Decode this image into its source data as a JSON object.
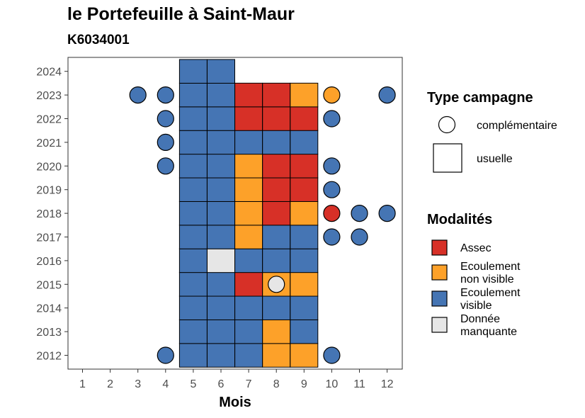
{
  "title": "le Portefeuille à Saint-Maur",
  "subtitle": "K6034001",
  "colors": {
    "Assec": "#D73027",
    "Ecoulement non visible": "#FDA129",
    "Ecoulement visible": "#4575B4",
    "Donnée manquante": "#E6E6E6"
  },
  "legend_type": {
    "title": "Type campagne",
    "items": [
      {
        "key": "complementaire",
        "label": "complémentaire",
        "shape": "circle"
      },
      {
        "key": "usuelle",
        "label": "usuelle",
        "shape": "square"
      }
    ]
  },
  "legend_modalites": {
    "title": "Modalités",
    "items": [
      {
        "key": "Assec",
        "lines": [
          "Assec"
        ]
      },
      {
        "key": "Ecoulement non visible",
        "lines": [
          "Ecoulement",
          "non visible"
        ]
      },
      {
        "key": "Ecoulement visible",
        "lines": [
          "Ecoulement",
          "visible"
        ]
      },
      {
        "key": "Donnée manquante",
        "lines": [
          "Donnée",
          "manquante"
        ]
      }
    ]
  },
  "chart_data": {
    "type": "heatmap",
    "xlabel": "Mois",
    "ylabel": "",
    "x_categories": [
      1,
      2,
      3,
      4,
      5,
      6,
      7,
      8,
      9,
      10,
      11,
      12
    ],
    "y_categories": [
      2012,
      2013,
      2014,
      2015,
      2016,
      2017,
      2018,
      2019,
      2020,
      2021,
      2022,
      2023,
      2024
    ],
    "usuelle": [
      {
        "year": 2012,
        "values": {
          "5": "Ecoulement visible",
          "6": "Ecoulement visible",
          "7": "Ecoulement visible",
          "8": "Ecoulement non visible",
          "9": "Ecoulement non visible"
        }
      },
      {
        "year": 2013,
        "values": {
          "5": "Ecoulement visible",
          "6": "Ecoulement visible",
          "7": "Ecoulement visible",
          "8": "Ecoulement non visible",
          "9": "Ecoulement visible"
        }
      },
      {
        "year": 2014,
        "values": {
          "5": "Ecoulement visible",
          "6": "Ecoulement visible",
          "7": "Ecoulement visible",
          "8": "Ecoulement visible",
          "9": "Ecoulement visible"
        }
      },
      {
        "year": 2015,
        "values": {
          "5": "Ecoulement visible",
          "6": "Ecoulement visible",
          "7": "Assec",
          "8": "Ecoulement non visible",
          "9": "Ecoulement non visible"
        }
      },
      {
        "year": 2016,
        "values": {
          "5": "Ecoulement visible",
          "6": "Donnée manquante",
          "7": "Ecoulement visible",
          "8": "Ecoulement visible",
          "9": "Ecoulement visible"
        }
      },
      {
        "year": 2017,
        "values": {
          "5": "Ecoulement visible",
          "6": "Ecoulement visible",
          "7": "Ecoulement non visible",
          "8": "Ecoulement visible",
          "9": "Ecoulement visible"
        }
      },
      {
        "year": 2018,
        "values": {
          "5": "Ecoulement visible",
          "6": "Ecoulement visible",
          "7": "Ecoulement non visible",
          "8": "Assec",
          "9": "Ecoulement non visible"
        }
      },
      {
        "year": 2019,
        "values": {
          "5": "Ecoulement visible",
          "6": "Ecoulement visible",
          "7": "Ecoulement non visible",
          "8": "Assec",
          "9": "Assec"
        }
      },
      {
        "year": 2020,
        "values": {
          "5": "Ecoulement visible",
          "6": "Ecoulement visible",
          "7": "Ecoulement non visible",
          "8": "Assec",
          "9": "Assec"
        }
      },
      {
        "year": 2021,
        "values": {
          "5": "Ecoulement visible",
          "6": "Ecoulement visible",
          "7": "Ecoulement visible",
          "8": "Ecoulement visible",
          "9": "Ecoulement visible"
        }
      },
      {
        "year": 2022,
        "values": {
          "5": "Ecoulement visible",
          "6": "Ecoulement visible",
          "7": "Assec",
          "8": "Assec",
          "9": "Assec"
        }
      },
      {
        "year": 2023,
        "values": {
          "5": "Ecoulement visible",
          "6": "Ecoulement visible",
          "7": "Assec",
          "8": "Assec",
          "9": "Ecoulement non visible"
        }
      },
      {
        "year": 2024,
        "values": {
          "5": "Ecoulement visible",
          "6": "Ecoulement visible"
        }
      }
    ],
    "complementaire": [
      {
        "year": 2012,
        "month": 4,
        "value": "Ecoulement visible"
      },
      {
        "year": 2012,
        "month": 10,
        "value": "Ecoulement visible"
      },
      {
        "year": 2015,
        "month": 8,
        "value": "Donnée manquante"
      },
      {
        "year": 2017,
        "month": 10,
        "value": "Ecoulement visible"
      },
      {
        "year": 2017,
        "month": 11,
        "value": "Ecoulement visible"
      },
      {
        "year": 2018,
        "month": 10,
        "value": "Assec"
      },
      {
        "year": 2018,
        "month": 11,
        "value": "Ecoulement visible"
      },
      {
        "year": 2018,
        "month": 12,
        "value": "Ecoulement visible"
      },
      {
        "year": 2019,
        "month": 10,
        "value": "Ecoulement visible"
      },
      {
        "year": 2020,
        "month": 4,
        "value": "Ecoulement visible"
      },
      {
        "year": 2020,
        "month": 10,
        "value": "Ecoulement visible"
      },
      {
        "year": 2021,
        "month": 4,
        "value": "Ecoulement visible"
      },
      {
        "year": 2022,
        "month": 4,
        "value": "Ecoulement visible"
      },
      {
        "year": 2022,
        "month": 10,
        "value": "Ecoulement visible"
      },
      {
        "year": 2023,
        "month": 3,
        "value": "Ecoulement visible"
      },
      {
        "year": 2023,
        "month": 4,
        "value": "Ecoulement visible"
      },
      {
        "year": 2023,
        "month": 10,
        "value": "Ecoulement non visible"
      },
      {
        "year": 2023,
        "month": 12,
        "value": "Ecoulement visible"
      }
    ]
  }
}
